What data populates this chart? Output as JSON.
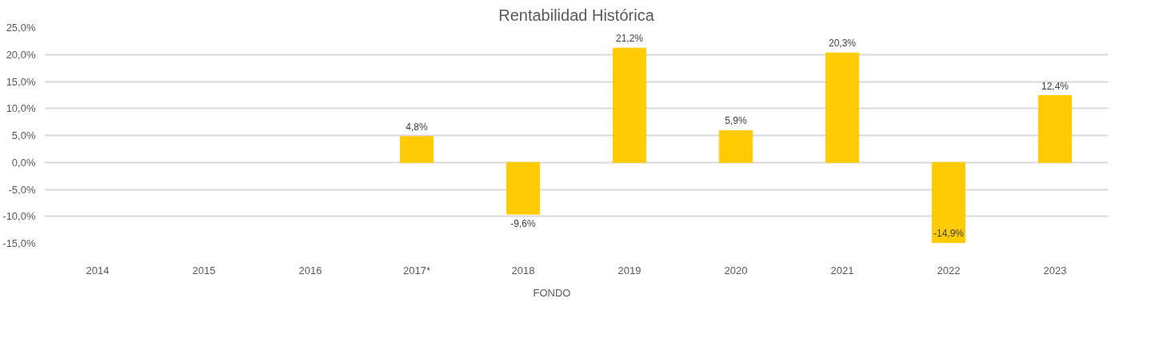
{
  "chart_data": {
    "type": "bar",
    "title": "Rentabilidad Histórica",
    "categories": [
      "2014",
      "2015",
      "2016",
      "2017*",
      "2018",
      "2019",
      "2020",
      "2021",
      "2022",
      "2023"
    ],
    "series": [
      {
        "name": "FONDO",
        "color": "#ffcb05",
        "values": [
          null,
          null,
          null,
          4.8,
          -9.6,
          21.2,
          5.9,
          20.3,
          -14.9,
          12.4
        ],
        "value_labels": [
          null,
          null,
          null,
          "4,8%",
          "-9,6%",
          "21,2%",
          "5,9%",
          "20,3%",
          "-14,9%",
          "12,4%"
        ]
      }
    ],
    "ylim": [
      -15,
      25
    ],
    "yticks": [
      {
        "value": -15,
        "label": "-15,0%"
      },
      {
        "value": -10,
        "label": "-10,0%"
      },
      {
        "value": -5,
        "label": "-5,0%"
      },
      {
        "value": 0,
        "label": "0,0%"
      },
      {
        "value": 5,
        "label": "5,0%"
      },
      {
        "value": 10,
        "label": "10,0%"
      },
      {
        "value": 15,
        "label": "15,0%"
      },
      {
        "value": 20,
        "label": "20,0%"
      },
      {
        "value": 25,
        "label": "25,0%"
      }
    ],
    "grid": "y",
    "legend": "bottom"
  }
}
